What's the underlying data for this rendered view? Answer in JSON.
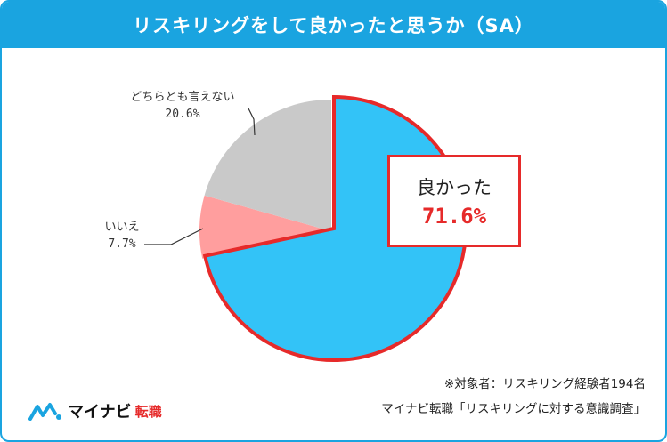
{
  "header": {
    "title": "リスキリングをして良かったと思うか（SA）"
  },
  "chart_data": {
    "type": "pie",
    "title": "リスキリングをして良かったと思うか（SA）",
    "slices": [
      {
        "label": "良かった",
        "value": 71.6,
        "display": "71.6%",
        "color": "#33c3f7"
      },
      {
        "label": "いいえ",
        "value": 7.7,
        "display": "7.7%",
        "color": "#ff9e9e"
      },
      {
        "label": "どちらとも言えない",
        "value": 20.6,
        "display": "20.6%",
        "color": "#c9c9c9"
      }
    ],
    "start": "12 o'clock",
    "direction": "clockwise",
    "highlight": {
      "slice": "良かった",
      "outline_color": "#e62a2a"
    }
  },
  "footer": {
    "note_line1": "※対象者：リスキリング経験者194名",
    "note_line2": "マイナビ転職「リスキリングに対する意識調査」",
    "brand": "マイナビ",
    "brand_sub": "転職"
  },
  "colors": {
    "accent": "#1aa4e0",
    "highlight": "#e62a2a"
  }
}
